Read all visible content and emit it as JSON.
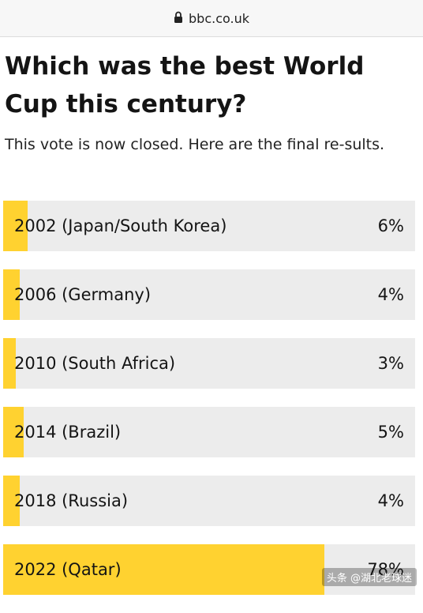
{
  "browser": {
    "url": "bbc.co.uk",
    "lock_icon": "lock-icon"
  },
  "poll": {
    "title": "Which was the best World Cup this century?",
    "status": "This vote is now closed. Here are the final re-sults.",
    "options": [
      {
        "label": "2002 (Japan/South Korea)",
        "percent_text": "6%",
        "percent": 6
      },
      {
        "label": "2006 (Germany)",
        "percent_text": "4%",
        "percent": 4
      },
      {
        "label": "2010 (South Africa)",
        "percent_text": "3%",
        "percent": 3
      },
      {
        "label": "2014 (Brazil)",
        "percent_text": "5%",
        "percent": 5
      },
      {
        "label": "2018 (Russia)",
        "percent_text": "4%",
        "percent": 4
      },
      {
        "label": "2022 (Qatar)",
        "percent_text": "78%",
        "percent": 78
      }
    ]
  },
  "colors": {
    "bar_fill": "#ffd230",
    "bar_track": "#ececec",
    "text": "#141414"
  },
  "watermark": "头条 @湖北老球迷"
}
